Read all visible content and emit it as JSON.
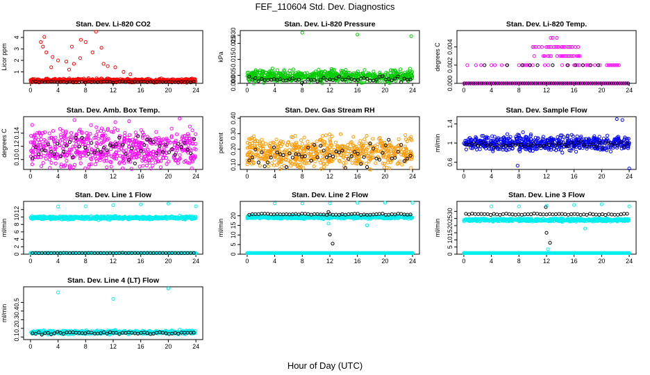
{
  "figure": {
    "title": "FEF_110604  Std. Dev. Diagnostics",
    "xlabel": "Hour of Day (UTC)"
  },
  "chart_data": [
    {
      "type": "scatter",
      "title": "Stan. Dev. Li-820 CO2",
      "ylabel": "Licor ppm",
      "xlim": [
        -1,
        25
      ],
      "ylim": [
        0,
        4.6
      ],
      "xticks": [
        0,
        4,
        8,
        12,
        16,
        20,
        24
      ],
      "yticks": [
        1,
        2,
        3,
        4
      ],
      "color": "#ff0000",
      "bulk": {
        "base": 0.25,
        "spread": 0.15
      },
      "black": {
        "base": 0.12,
        "spread": 0.05
      },
      "outliers": [
        [
          2.0,
          4.05
        ],
        [
          1.5,
          3.6
        ],
        [
          1.8,
          3.2
        ],
        [
          2.3,
          2.7
        ],
        [
          3.2,
          2.3
        ],
        [
          4.0,
          2.0
        ],
        [
          5.2,
          1.9
        ],
        [
          6.3,
          1.7
        ],
        [
          7.2,
          2.2
        ],
        [
          8.0,
          3.6
        ],
        [
          9.5,
          4.5
        ],
        [
          10.3,
          3.1
        ],
        [
          9.0,
          2.7
        ],
        [
          10.6,
          1.7
        ],
        [
          12.3,
          1.4
        ],
        [
          13.5,
          1.0
        ],
        [
          6.0,
          3.2
        ],
        [
          7.3,
          3.8
        ],
        [
          3.0,
          1.4
        ],
        [
          5.6,
          1.2
        ],
        [
          11.2,
          1.5
        ],
        [
          14.5,
          0.8
        ]
      ]
    },
    {
      "type": "scatter",
      "title": "Stan. Dev. Li-820 Pressure",
      "ylabel": "kPa",
      "xlim": [
        -1,
        25
      ],
      "ylim": [
        0,
        0.033
      ],
      "xticks": [
        0,
        4,
        8,
        12,
        16,
        20,
        24
      ],
      "yticks": [
        0.0,
        0.005,
        0.015,
        0.025
      ],
      "ytick_labels": [
        "0.000",
        "0.005",
        "0.015",
        "0.025"
      ],
      "extra_ytick_labels": [
        {
          "value": 0.03,
          "label": "0.030"
        }
      ],
      "color": "#00cc00",
      "bulk": {
        "base": 0.0045,
        "spread": 0.0035
      },
      "black": {
        "base": 0.0025,
        "spread": 0.002
      },
      "outliers": [
        [
          8.0,
          0.0317
        ],
        [
          16.0,
          0.0305
        ],
        [
          23.8,
          0.0295
        ]
      ]
    },
    {
      "type": "scatter",
      "title": "Stan. Dev. Li-820 Temp.",
      "ylabel": "degrees C",
      "xlim": [
        -1,
        25
      ],
      "ylim": [
        0,
        0.0058
      ],
      "xticks": [
        0,
        4,
        8,
        12,
        16,
        20,
        24
      ],
      "yticks": [
        0.0,
        0.002,
        0.004
      ],
      "ytick_labels": [
        "0.000",
        "0.002",
        "0.004"
      ],
      "color": "#ff00ff",
      "discrete": true,
      "levels": [
        0.0,
        0.002,
        0.003,
        0.004,
        0.005
      ],
      "black_levels": [
        0.0,
        0.002
      ]
    },
    {
      "type": "scatter",
      "title": "Stan. Dev. Amb. Box Temp.",
      "ylabel": "degrees C",
      "xlim": [
        -1,
        25
      ],
      "ylim": [
        0.085,
        0.165
      ],
      "xticks": [
        0,
        4,
        8,
        12,
        16,
        20,
        24
      ],
      "yticks": [
        0.1,
        0.12,
        0.14
      ],
      "ytick_labels": [
        "0.10",
        "0.12",
        "0.14"
      ],
      "color": "#ff00ff",
      "bulk": {
        "base": 0.117,
        "spread": 0.03
      },
      "black": {
        "base": 0.117,
        "spread": 0.02
      },
      "outliers": []
    },
    {
      "type": "scatter",
      "title": "Stan. Dev. Gas Stream RH",
      "ylabel": "percent",
      "xlim": [
        -1,
        25
      ],
      "ylim": [
        0.07,
        0.41
      ],
      "xticks": [
        0,
        4,
        8,
        12,
        16,
        20,
        24
      ],
      "yticks": [
        0.1,
        0.2,
        0.3,
        0.4
      ],
      "ytick_labels": [
        "0.10",
        "0.20",
        "0.30",
        "0.40"
      ],
      "color": "#ff9900",
      "bulk": {
        "base": 0.18,
        "spread": 0.1
      },
      "black": {
        "base": 0.16,
        "spread": 0.07
      },
      "outliers": []
    },
    {
      "type": "scatter",
      "title": "Stan. Dev. Sample Flow",
      "ylabel": "ml/min",
      "xlim": [
        -1,
        25
      ],
      "ylim": [
        0.45,
        1.55
      ],
      "xticks": [
        0,
        4,
        8,
        12,
        16,
        20,
        24
      ],
      "yticks": [
        0.6,
        1.0,
        1.4
      ],
      "color": "#0000ff",
      "bulk": {
        "base": 1.0,
        "spread": 0.15
      },
      "black": {
        "base": 0.97,
        "spread": 0.07
      },
      "outliers": [
        [
          7.8,
          0.53
        ],
        [
          24.0,
          0.47
        ],
        [
          23.0,
          1.48
        ],
        [
          22.2,
          1.5
        ]
      ]
    },
    {
      "type": "scatter",
      "title": "Stan. Dev. Line 1 Flow",
      "ylabel": "ml/min",
      "xlim": [
        -1,
        25
      ],
      "ylim": [
        0,
        14.2
      ],
      "xticks": [
        0,
        4,
        8,
        12,
        16,
        20,
        24
      ],
      "yticks": [
        0,
        2,
        4,
        6,
        8,
        10,
        12
      ],
      "color": "#00eeee",
      "bulk": {
        "base": 9.8,
        "spread": 0.4
      },
      "black": {
        "base": 0.3,
        "spread": 0.05
      },
      "cyan_low": 0.3,
      "outliers": [
        [
          4.0,
          12.8
        ],
        [
          8.0,
          12.9
        ],
        [
          12.0,
          13.2
        ],
        [
          16.0,
          13.4
        ],
        [
          20.0,
          13.6
        ],
        [
          24.0,
          12.9
        ]
      ]
    },
    {
      "type": "scatter",
      "title": "Stan. Dev. Line 2 Flow",
      "ylabel": "ml/min",
      "xlim": [
        -1,
        25
      ],
      "ylim": [
        0,
        27.5
      ],
      "xticks": [
        0,
        4,
        8,
        12,
        16,
        20,
        24
      ],
      "yticks": [
        0,
        5,
        10,
        15,
        20
      ],
      "color": "#00eeee",
      "bulk": {
        "base": 19.3,
        "spread": 0.8
      },
      "black": {
        "base": 20.8,
        "spread": 0.4
      },
      "cyan_low": 0.6,
      "black_outliers": [
        [
          12.0,
          10.2
        ],
        [
          12.4,
          5.5
        ],
        [
          11.8,
          22.0
        ]
      ],
      "outliers": [
        [
          4.0,
          26.5
        ],
        [
          8.0,
          26.5
        ],
        [
          12.0,
          26.5
        ],
        [
          16.0,
          26.8
        ],
        [
          20.0,
          26.8
        ],
        [
          24.0,
          26.8
        ],
        [
          17.4,
          15.0
        ],
        [
          11.8,
          16.0
        ]
      ]
    },
    {
      "type": "scatter",
      "title": "Stan. Dev. Line 3 Flow",
      "ylabel": "ml/min",
      "xlim": [
        -1,
        25
      ],
      "ylim": [
        0,
        37
      ],
      "xticks": [
        0,
        4,
        8,
        12,
        16,
        20,
        24
      ],
      "yticks": [
        0,
        5,
        10,
        15,
        20,
        25,
        30
      ],
      "color": "#00eeee",
      "bulk": {
        "base": 24.0,
        "spread": 1.0
      },
      "black": {
        "base": 28.0,
        "spread": 0.5
      },
      "cyan_low": 0.8,
      "black_outliers": [
        [
          12.0,
          15.0
        ],
        [
          12.5,
          8.0
        ],
        [
          11.9,
          33.0
        ]
      ],
      "outliers": [
        [
          4.0,
          33.5
        ],
        [
          8.0,
          33.5
        ],
        [
          12.0,
          34.0
        ],
        [
          16.0,
          34.5
        ],
        [
          20.0,
          35.0
        ],
        [
          24.0,
          33.5
        ],
        [
          17.6,
          18.0
        ],
        [
          12.2,
          3.5
        ]
      ]
    },
    {
      "type": "scatter",
      "title": "Stan. Dev. Line 4 (LT) Flow",
      "ylabel": "ml/min",
      "xlim": [
        -1,
        25
      ],
      "ylim": [
        0.07,
        0.68
      ],
      "xticks": [
        0,
        4,
        8,
        12,
        16,
        20,
        24
      ],
      "yticks": [
        0.1,
        0.2,
        0.3,
        0.4,
        0.5
      ],
      "color": "#00eeee",
      "bulk": {
        "base": 0.155,
        "spread": 0.02
      },
      "black": {
        "base": 0.145,
        "spread": 0.015
      },
      "outliers": [
        [
          4.0,
          0.615
        ],
        [
          12.0,
          0.54
        ],
        [
          20.0,
          0.66
        ]
      ]
    }
  ]
}
